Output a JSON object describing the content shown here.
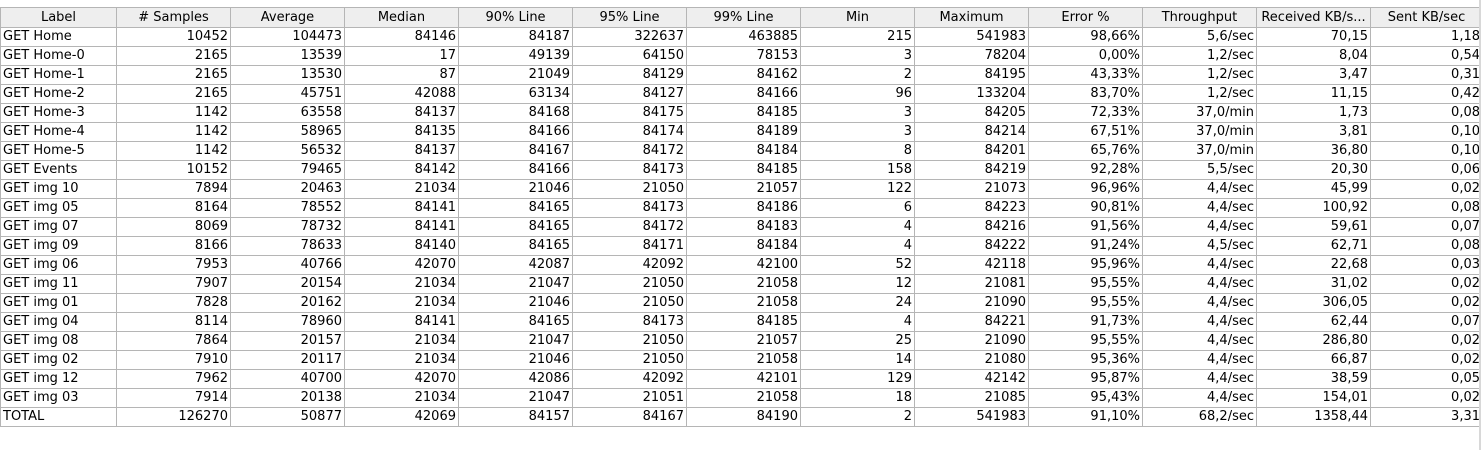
{
  "table": {
    "columns": [
      "Label",
      "# Samples",
      "Average",
      "Median",
      "90% Line",
      "95% Line",
      "99% Line",
      "Min",
      "Maximum",
      "Error %",
      "Throughput",
      "Received KB/s...",
      "Sent KB/sec"
    ],
    "rows": [
      [
        "GET Home",
        "10452",
        "104473",
        "84146",
        "84187",
        "322637",
        "463885",
        "215",
        "541983",
        "98,66%",
        "5,6/sec",
        "70,15",
        "1,18"
      ],
      [
        "GET Home-0",
        "2165",
        "13539",
        "17",
        "49139",
        "64150",
        "78153",
        "3",
        "78204",
        "0,00%",
        "1,2/sec",
        "8,04",
        "0,54"
      ],
      [
        "GET Home-1",
        "2165",
        "13530",
        "87",
        "21049",
        "84129",
        "84162",
        "2",
        "84195",
        "43,33%",
        "1,2/sec",
        "3,47",
        "0,31"
      ],
      [
        "GET Home-2",
        "2165",
        "45751",
        "42088",
        "63134",
        "84127",
        "84166",
        "96",
        "133204",
        "83,70%",
        "1,2/sec",
        "11,15",
        "0,42"
      ],
      [
        "GET Home-3",
        "1142",
        "63558",
        "84137",
        "84168",
        "84175",
        "84185",
        "3",
        "84205",
        "72,33%",
        "37,0/min",
        "1,73",
        "0,08"
      ],
      [
        "GET Home-4",
        "1142",
        "58965",
        "84135",
        "84166",
        "84174",
        "84189",
        "3",
        "84214",
        "67,51%",
        "37,0/min",
        "3,81",
        "0,10"
      ],
      [
        "GET Home-5",
        "1142",
        "56532",
        "84137",
        "84167",
        "84172",
        "84184",
        "8",
        "84201",
        "65,76%",
        "37,0/min",
        "36,80",
        "0,10"
      ],
      [
        "GET Events",
        "10152",
        "79465",
        "84142",
        "84166",
        "84173",
        "84185",
        "158",
        "84219",
        "92,28%",
        "5,5/sec",
        "20,30",
        "0,06"
      ],
      [
        "GET img 10",
        "7894",
        "20463",
        "21034",
        "21046",
        "21050",
        "21057",
        "122",
        "21073",
        "96,96%",
        "4,4/sec",
        "45,99",
        "0,02"
      ],
      [
        "GET img 05",
        "8164",
        "78552",
        "84141",
        "84165",
        "84173",
        "84186",
        "6",
        "84223",
        "90,81%",
        "4,4/sec",
        "100,92",
        "0,08"
      ],
      [
        "GET img 07",
        "8069",
        "78732",
        "84141",
        "84165",
        "84172",
        "84183",
        "4",
        "84216",
        "91,56%",
        "4,4/sec",
        "59,61",
        "0,07"
      ],
      [
        "GET img 09",
        "8166",
        "78633",
        "84140",
        "84165",
        "84171",
        "84184",
        "4",
        "84222",
        "91,24%",
        "4,5/sec",
        "62,71",
        "0,08"
      ],
      [
        "GET img 06",
        "7953",
        "40766",
        "42070",
        "42087",
        "42092",
        "42100",
        "52",
        "42118",
        "95,96%",
        "4,4/sec",
        "22,68",
        "0,03"
      ],
      [
        "GET img 11",
        "7907",
        "20154",
        "21034",
        "21047",
        "21050",
        "21058",
        "12",
        "21081",
        "95,55%",
        "4,4/sec",
        "31,02",
        "0,02"
      ],
      [
        "GET img 01",
        "7828",
        "20162",
        "21034",
        "21046",
        "21050",
        "21058",
        "24",
        "21090",
        "95,55%",
        "4,4/sec",
        "306,05",
        "0,02"
      ],
      [
        "GET img 04",
        "8114",
        "78960",
        "84141",
        "84165",
        "84173",
        "84185",
        "4",
        "84221",
        "91,73%",
        "4,4/sec",
        "62,44",
        "0,07"
      ],
      [
        "GET img 08",
        "7864",
        "20157",
        "21034",
        "21047",
        "21050",
        "21057",
        "25",
        "21090",
        "95,55%",
        "4,4/sec",
        "286,80",
        "0,02"
      ],
      [
        "GET img 02",
        "7910",
        "20117",
        "21034",
        "21046",
        "21050",
        "21058",
        "14",
        "21080",
        "95,36%",
        "4,4/sec",
        "66,87",
        "0,02"
      ],
      [
        "GET img 12",
        "7962",
        "40700",
        "42070",
        "42086",
        "42092",
        "42101",
        "129",
        "42142",
        "95,87%",
        "4,4/sec",
        "38,59",
        "0,05"
      ],
      [
        "GET img 03",
        "7914",
        "20138",
        "21034",
        "21047",
        "21051",
        "21058",
        "18",
        "21085",
        "95,43%",
        "4,4/sec",
        "154,01",
        "0,02"
      ],
      [
        "TOTAL",
        "126270",
        "50877",
        "42069",
        "84157",
        "84167",
        "84190",
        "2",
        "541983",
        "91,10%",
        "68,2/sec",
        "1358,44",
        "3,31"
      ]
    ]
  }
}
